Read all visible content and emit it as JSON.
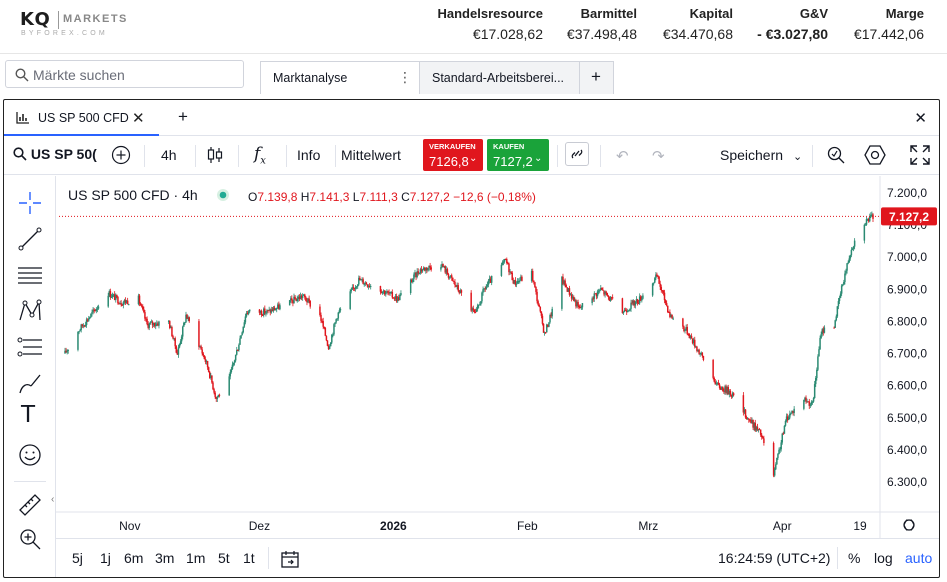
{
  "brand": {
    "logo_main": "KQ",
    "logo_sub": "MARKETS",
    "logo_by": "BYFOREX.COM"
  },
  "account": [
    {
      "label": "Handelsresource",
      "value": "€17.028,62"
    },
    {
      "label": "Barmittel",
      "value": "€37.498,48"
    },
    {
      "label": "Kapital",
      "value": "€34.470,68"
    },
    {
      "label": "G&V",
      "value": "- €3.027,80"
    },
    {
      "label": "Marge",
      "value": "€17.442,06"
    }
  ],
  "search": {
    "placeholder": "Märkte suchen"
  },
  "workspace_tabs": [
    {
      "label": "Marktanalyse",
      "active": true
    },
    {
      "label": "Standard-Arbeitsberei..."
    }
  ],
  "panel": {
    "tab_label": "US SP 500 CFD"
  },
  "toolbar": {
    "symbol": "US SP 50(",
    "interval": "4h",
    "info": "Info",
    "price_type": "Mittelwert",
    "sell_label": "VERKAUFEN",
    "sell_price": "7126,8",
    "buy_label": "KAUFEN",
    "buy_price": "7127,2",
    "save": "Speichern"
  },
  "legend": {
    "title": "US SP 500 CFD · 4h",
    "o_label": "O",
    "o": "7.139,8",
    "h_label": "H",
    "h": "7.141,3",
    "l_label": "L",
    "l": "7.111,3",
    "c_label": "C",
    "c": "7.127,2",
    "change": "−12,6 (−0,18%)"
  },
  "bottom": {
    "ranges": [
      "5j",
      "1j",
      "6m",
      "3m",
      "1m",
      "5t",
      "1t"
    ],
    "time": "16:24:59 (UTC+2)",
    "pct": "%",
    "log": "log",
    "auto": "auto"
  },
  "colors": {
    "up": "#2a8a72",
    "down": "#e0161d",
    "accent": "#2962ff"
  },
  "chart_data": {
    "type": "candlestick",
    "title": "US SP 500 CFD · 4h",
    "x_ticks": [
      "Nov",
      "Dez",
      "2026",
      "Feb",
      "Mrz",
      "Apr",
      "19"
    ],
    "y_ticks": [
      "7.200,0",
      "7.100,0",
      "7.000,0",
      "6.900,0",
      "6.800,0",
      "6.700,0",
      "6.600,0",
      "6.500,0",
      "6.400,0",
      "6.300,0"
    ],
    "ylim": [
      6260,
      7225
    ],
    "last_price_label": "7.127,2",
    "last_price": 7127.2,
    "x_start": "2025-10-17",
    "x_end": "2026-04-22",
    "path": [
      [
        "2025-10-17",
        6700
      ],
      [
        "2025-10-20",
        6770
      ],
      [
        "2025-10-23",
        6820
      ],
      [
        "2025-10-27",
        6890
      ],
      [
        "2025-10-30",
        6860
      ],
      [
        "2025-11-03",
        6870
      ],
      [
        "2025-11-05",
        6790
      ],
      [
        "2025-11-10",
        6800
      ],
      [
        "2025-11-12",
        6700
      ],
      [
        "2025-11-14",
        6820
      ],
      [
        "2025-11-17",
        6730
      ],
      [
        "2025-11-19",
        6660
      ],
      [
        "2025-11-21",
        6560
      ],
      [
        "2025-11-24",
        6620
      ],
      [
        "2025-11-26",
        6720
      ],
      [
        "2025-11-28",
        6830
      ],
      [
        "2025-12-03",
        6830
      ],
      [
        "2025-12-08",
        6860
      ],
      [
        "2025-12-11",
        6880
      ],
      [
        "2025-12-15",
        6820
      ],
      [
        "2025-12-17",
        6720
      ],
      [
        "2025-12-19",
        6820
      ],
      [
        "2025-12-24",
        6930
      ],
      [
        "2025-12-29",
        6900
      ],
      [
        "2026-01-02",
        6870
      ],
      [
        "2026-01-07",
        6960
      ],
      [
        "2026-01-12",
        6980
      ],
      [
        "2026-01-15",
        6920
      ],
      [
        "2026-01-20",
        6820
      ],
      [
        "2026-01-22",
        6900
      ],
      [
        "2026-01-27",
        6990
      ],
      [
        "2026-01-29",
        6920
      ],
      [
        "2026-02-02",
        6950
      ],
      [
        "2026-02-05",
        6760
      ],
      [
        "2026-02-09",
        6930
      ],
      [
        "2026-02-13",
        6840
      ],
      [
        "2026-02-18",
        6900
      ],
      [
        "2026-02-23",
        6830
      ],
      [
        "2026-02-27",
        6870
      ],
      [
        "2026-03-03",
        6940
      ],
      [
        "2026-03-06",
        6820
      ],
      [
        "2026-03-10",
        6770
      ],
      [
        "2026-03-13",
        6700
      ],
      [
        "2026-03-17",
        6600
      ],
      [
        "2026-03-20",
        6580
      ],
      [
        "2026-03-24",
        6500
      ],
      [
        "2026-03-27",
        6450
      ],
      [
        "2026-03-30",
        6320
      ],
      [
        "2026-04-02",
        6500
      ],
      [
        "2026-04-06",
        6560
      ],
      [
        "2026-04-08",
        6540
      ],
      [
        "2026-04-10",
        6770
      ],
      [
        "2026-04-13",
        6790
      ],
      [
        "2026-04-15",
        6920
      ],
      [
        "2026-04-17",
        7030
      ],
      [
        "2026-04-20",
        7110
      ],
      [
        "2026-04-22",
        7127.2
      ]
    ]
  }
}
